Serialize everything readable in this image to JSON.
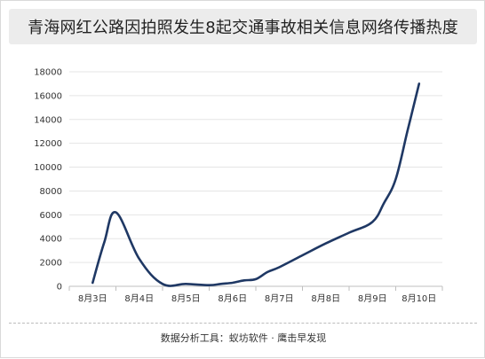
{
  "title": "青海网红公路因拍照发生8起交通事故相关信息网络传播热度",
  "footer": "数据分析工具：蚁坊软件 · 鹰击早发现",
  "colors": {
    "line": "#1f3864",
    "grid": "#e5e5e5",
    "axis": "#bfbfbf",
    "title_bg": "#ececec"
  },
  "chart_data": {
    "type": "line",
    "title": "青海网红公路因拍照发生8起交通事故相关信息网络传播热度",
    "categories": [
      "8月3日",
      "8月4日",
      "8月5日",
      "8月6日",
      "8月7日",
      "8月8日",
      "8月9日",
      "8月10日"
    ],
    "x": [
      0,
      0.5,
      1,
      2,
      3,
      4,
      5,
      5.5,
      6,
      6.5,
      7,
      7.5,
      8,
      9,
      10,
      11,
      12,
      12.5,
      13,
      13.5,
      14
    ],
    "series": [
      {
        "values": [
          300,
          3700,
          6200,
          2300,
          200,
          200,
          100,
          200,
          300,
          500,
          600,
          1200,
          1600,
          2600,
          3600,
          4500,
          5400,
          7000,
          9000,
          13000,
          17000
        ]
      }
    ],
    "yticks": [
      0,
      2000,
      4000,
      6000,
      8000,
      10000,
      12000,
      14000,
      16000,
      18000
    ],
    "ylim": [
      0,
      18000
    ],
    "grid": true,
    "legend": "none",
    "xlabel": "",
    "ylabel": ""
  }
}
